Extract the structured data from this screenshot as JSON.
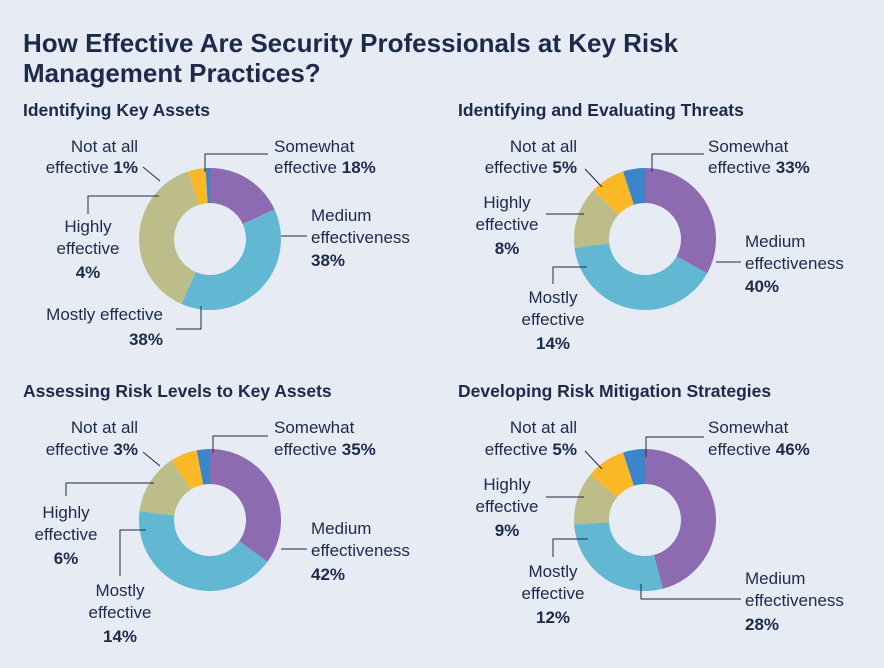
{
  "title": "How Effective Are Security Professionals at Key Risk Management Practices?",
  "colors": {
    "not_at_all": "#3a86c8",
    "somewhat": "#8c6bb1",
    "medium": "#62b7d3",
    "mostly": "#bdbd8a",
    "highly": "#fbb826"
  },
  "chart_data": [
    {
      "type": "pie",
      "title": "Identifying Key Assets",
      "slices": [
        {
          "key": "somewhat",
          "label": "Somewhat effective",
          "value": 18
        },
        {
          "key": "medium",
          "label": "Medium effectiveness",
          "value": 38
        },
        {
          "key": "mostly",
          "label": "Mostly effective",
          "value": 38
        },
        {
          "key": "highly",
          "label": "Highly effective",
          "value": 4
        },
        {
          "key": "not_at_all",
          "label": "Not at all effective",
          "value": 1
        }
      ]
    },
    {
      "type": "pie",
      "title": "Identifying and Evaluating Threats",
      "slices": [
        {
          "key": "somewhat",
          "label": "Somewhat effective",
          "value": 33
        },
        {
          "key": "medium",
          "label": "Medium effectiveness",
          "value": 40
        },
        {
          "key": "mostly",
          "label": "Mostly effective",
          "value": 14
        },
        {
          "key": "highly",
          "label": "Highly effective",
          "value": 8
        },
        {
          "key": "not_at_all",
          "label": "Not at all effective",
          "value": 5
        }
      ]
    },
    {
      "type": "pie",
      "title": "Assessing Risk Levels to Key Assets",
      "slices": [
        {
          "key": "somewhat",
          "label": "Somewhat effective",
          "value": 35
        },
        {
          "key": "medium",
          "label": "Medium effectiveness",
          "value": 42
        },
        {
          "key": "mostly",
          "label": "Mostly effective",
          "value": 14
        },
        {
          "key": "highly",
          "label": "Highly effective",
          "value": 6
        },
        {
          "key": "not_at_all",
          "label": "Not at all effective",
          "value": 3
        }
      ]
    },
    {
      "type": "pie",
      "title": "Developing Risk Mitigation Strategies",
      "slices": [
        {
          "key": "somewhat",
          "label": "Somewhat effective",
          "value": 46
        },
        {
          "key": "medium",
          "label": "Medium effectiveness",
          "value": 28
        },
        {
          "key": "mostly",
          "label": "Mostly effective",
          "value": 12
        },
        {
          "key": "highly",
          "label": "Highly effective",
          "value": 9
        },
        {
          "key": "not_at_all",
          "label": "Not at all effective",
          "value": 5
        }
      ]
    }
  ]
}
